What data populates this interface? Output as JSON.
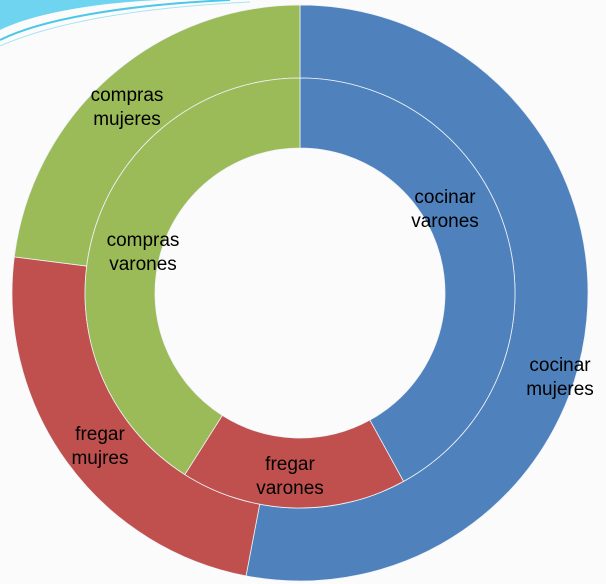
{
  "chart_data": {
    "type": "doughnut",
    "colors": [
      "#4f81bd",
      "#c0504d",
      "#9bbb59"
    ],
    "rings": [
      {
        "labels": [
          "cocinar mujeres",
          "fregar mujres",
          "compras mujeres"
        ],
        "values": [
          53,
          24,
          23
        ]
      },
      {
        "labels": [
          "cocinar varones",
          "fregar varones",
          "compras varones"
        ],
        "values": [
          42,
          17,
          41
        ]
      }
    ]
  }
}
